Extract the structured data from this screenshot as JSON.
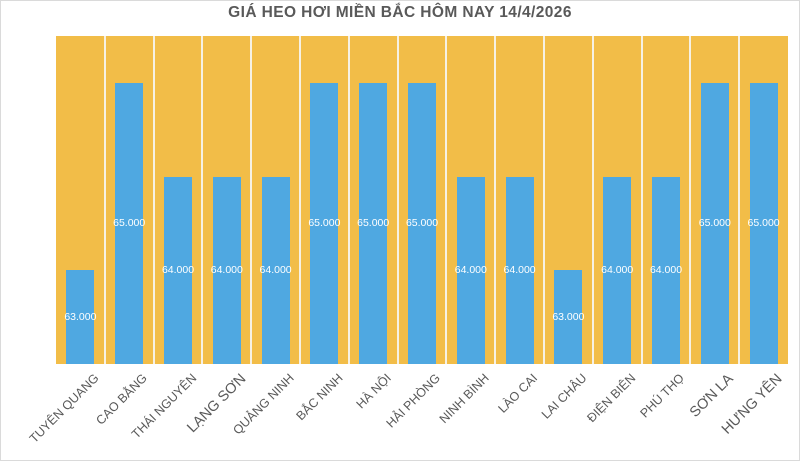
{
  "chart_data": {
    "type": "bar",
    "title": "GIÁ HEO HƠI MIỀN BẮC HÔM NAY 14/4/2026",
    "categories": [
      "TUYÊN QUANG",
      "CAO BẰNG",
      "THÁI NGUYÊN",
      "LẠNG SƠN",
      "QUẢNG NINH",
      "BẮC NINH",
      "HÀ NỘI",
      "HẢI PHÒNG",
      "NINH BÌNH",
      "LÀO CAI",
      "LAI CHÂU",
      "ĐIỆN BIÊN",
      "PHÚ THỌ",
      "SƠN LA",
      "HƯNG YÊN"
    ],
    "values": [
      63000,
      65000,
      64000,
      64000,
      64000,
      65000,
      65000,
      65000,
      64000,
      64000,
      63000,
      64000,
      64000,
      65000,
      65000
    ],
    "value_labels": [
      "63.000",
      "65.000",
      "64.000",
      "64.000",
      "64.000",
      "65.000",
      "65.000",
      "65.000",
      "64.000",
      "64.000",
      "63.000",
      "64.000",
      "64.000",
      "65.000",
      "65.000"
    ],
    "large_category_labels": [
      "LẠNG SƠN",
      "SƠN LA",
      "HƯNG YÊN"
    ],
    "xlabel": "",
    "ylabel": "",
    "ylim": [
      62000,
      65500
    ],
    "legend": "none",
    "grid": "vertical category separators only, no horizontal gridlines, no visible value axis",
    "value_label_position": "inside-center",
    "colors": {
      "bar": "#4FA8E1",
      "plot_background": "#F2BD48",
      "separator": "#F6F1E4",
      "value_label": "#FFFFFF",
      "title": "#595959",
      "category_label": "#595959",
      "canvas_background": "#FFFFFF",
      "canvas_border": "#DADADA"
    }
  }
}
